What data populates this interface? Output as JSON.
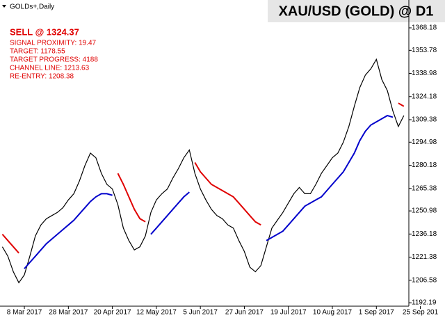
{
  "chart_data": {
    "type": "line",
    "title": "XAU/USD (GOLD) @ D1",
    "symbol_label": "GOLDs+,Daily",
    "signal": {
      "headline": "SELL @ 1324.37",
      "lines": [
        "SIGNAL PROXIMITY: 19.47",
        "TARGET: 1178.55",
        "TARGET PROGRESS: 4188",
        "CHANNEL LINE: 1213.63",
        "RE-ENTRY: 1208.38"
      ]
    },
    "categories": [
      null,
      null,
      null,
      null,
      "8 Mar 2017",
      null,
      null,
      null,
      null,
      null,
      null,
      null,
      "28 Mar 2017",
      null,
      null,
      null,
      null,
      null,
      null,
      null,
      "20 Apr 2017",
      null,
      null,
      null,
      null,
      null,
      null,
      null,
      "12 May 2017",
      null,
      null,
      null,
      null,
      null,
      null,
      null,
      "5 Jun 2017",
      null,
      null,
      null,
      null,
      null,
      null,
      null,
      "27 Jun 2017",
      null,
      null,
      null,
      null,
      null,
      null,
      null,
      "19 Jul 2017",
      null,
      null,
      null,
      null,
      null,
      null,
      null,
      "10 Aug 2017",
      null,
      null,
      null,
      null,
      null,
      null,
      null,
      "1 Sep 2017",
      null,
      null,
      null,
      null,
      null,
      null,
      null,
      "25 Sep 201"
    ],
    "series": [
      {
        "color": "#000000",
        "values": [
          1228,
          1222,
          1212,
          1205,
          1210,
          1222,
          1235,
          1242,
          1246,
          1248,
          1250,
          1253,
          1258,
          1262,
          1270,
          1280,
          1288,
          1285,
          1275,
          1268,
          1265,
          1255,
          1240,
          1232,
          1226,
          1228,
          1235,
          1250,
          1258,
          1262,
          1265,
          1272,
          1278,
          1285,
          1290,
          1275,
          1265,
          1258,
          1252,
          1248,
          1246,
          1242,
          1240,
          1232,
          1225,
          1215,
          1212,
          1216,
          1228,
          1240,
          1245,
          1250,
          1256,
          1262,
          1266,
          1262,
          1262,
          1268,
          1275,
          1280,
          1285,
          1288,
          1295,
          1305,
          1318,
          1330,
          1338,
          1342,
          1348,
          1335,
          1328,
          1315,
          1305,
          1312,
          null,
          null,
          null
        ]
      },
      {
        "color": "#e00000",
        "values": [
          1236,
          1232,
          1228,
          1224,
          null,
          null,
          null,
          null,
          null,
          null,
          null,
          null,
          null,
          null,
          null,
          null,
          null,
          null,
          null,
          null,
          null,
          1275,
          1268,
          1260,
          1252,
          1246,
          1244,
          null,
          null,
          null,
          null,
          null,
          null,
          null,
          null,
          1282,
          1276,
          1272,
          1268,
          1266,
          1264,
          1262,
          1260,
          1256,
          1252,
          1248,
          1244,
          1242,
          null,
          null,
          null,
          null,
          null,
          null,
          null,
          null,
          null,
          null,
          null,
          null,
          null,
          null,
          null,
          null,
          null,
          null,
          null,
          null,
          null,
          null,
          null,
          null,
          1320,
          1318,
          null,
          null,
          null
        ]
      },
      {
        "color": "#0000cc",
        "values": [
          null,
          null,
          null,
          null,
          1214,
          1218,
          1222,
          1226,
          1230,
          1233,
          1236,
          1239,
          1242,
          1245,
          1249,
          1253,
          1257,
          1260,
          1262,
          1262,
          1261,
          null,
          null,
          null,
          null,
          null,
          null,
          1236,
          1240,
          1244,
          1248,
          1252,
          1256,
          1260,
          1263,
          null,
          null,
          null,
          null,
          null,
          null,
          null,
          null,
          null,
          null,
          null,
          null,
          null,
          1232,
          1234,
          1236,
          1238,
          1242,
          1246,
          1250,
          1254,
          1256,
          1258,
          1260,
          1264,
          1268,
          1272,
          1276,
          1282,
          1288,
          1296,
          1302,
          1306,
          1308,
          1310,
          1312,
          1311,
          null,
          null,
          null,
          null,
          null
        ]
      }
    ],
    "ylim": [
      1190,
      1386
    ],
    "yticks": [
      1368.18,
      1353.78,
      1338.98,
      1324.18,
      1309.38,
      1294.98,
      1280.18,
      1265.38,
      1250.98,
      1236.18,
      1221.38,
      1206.58,
      1192.19
    ]
  }
}
